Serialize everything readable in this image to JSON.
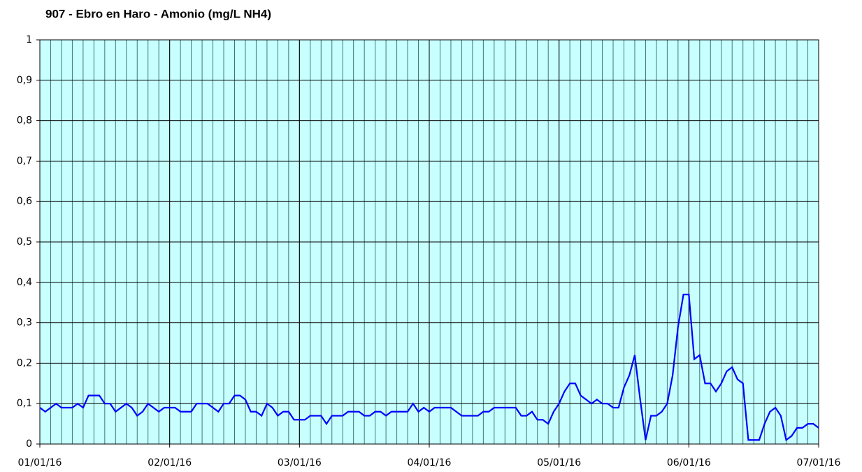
{
  "chart_data": {
    "type": "line",
    "title": "907 - Ebro en Haro - Amonio (mg/L NH4)",
    "color": "#0000ff",
    "background": "#c8ffff",
    "grid": true,
    "x": [
      0,
      1,
      2,
      3,
      4,
      5,
      6,
      7,
      8,
      9,
      10,
      11,
      12,
      13,
      14,
      15,
      16,
      17,
      18,
      19,
      20,
      21,
      22,
      23,
      24,
      25,
      26,
      27,
      28,
      29,
      30,
      31,
      32,
      33,
      34,
      35,
      36,
      37,
      38,
      39,
      40,
      41,
      42,
      43,
      44,
      45,
      46,
      47,
      48,
      49,
      50,
      51,
      52,
      53,
      54,
      55,
      56,
      57,
      58,
      59,
      60,
      61,
      62,
      63,
      64,
      65,
      66,
      67,
      68,
      69,
      70,
      71,
      72,
      73,
      74,
      75,
      76,
      77,
      78,
      79,
      80,
      81,
      82,
      83,
      84,
      85,
      86,
      87,
      88,
      89,
      90,
      91,
      92,
      93,
      94,
      95,
      96,
      97,
      98,
      99,
      100,
      101,
      102,
      103,
      104,
      105,
      106,
      107,
      108,
      109,
      110,
      111,
      112,
      113,
      114,
      115,
      116,
      117,
      118,
      119,
      120,
      121,
      122,
      123,
      124,
      125,
      126,
      127,
      128,
      129,
      130,
      131,
      132,
      133,
      134,
      135,
      136,
      137,
      138,
      139,
      140,
      141,
      142,
      143,
      144
    ],
    "values": [
      0.09,
      0.08,
      0.09,
      0.1,
      0.09,
      0.09,
      0.09,
      0.1,
      0.09,
      0.12,
      0.12,
      0.12,
      0.1,
      0.1,
      0.08,
      0.09,
      0.1,
      0.09,
      0.07,
      0.08,
      0.1,
      0.09,
      0.08,
      0.09,
      0.09,
      0.09,
      0.08,
      0.08,
      0.08,
      0.1,
      0.1,
      0.1,
      0.09,
      0.08,
      0.1,
      0.1,
      0.12,
      0.12,
      0.11,
      0.08,
      0.08,
      0.07,
      0.1,
      0.09,
      0.07,
      0.08,
      0.08,
      0.06,
      0.06,
      0.06,
      0.07,
      0.07,
      0.07,
      0.05,
      0.07,
      0.07,
      0.07,
      0.08,
      0.08,
      0.08,
      0.07,
      0.07,
      0.08,
      0.08,
      0.07,
      0.08,
      0.08,
      0.08,
      0.08,
      0.1,
      0.08,
      0.09,
      0.08,
      0.09,
      0.09,
      0.09,
      0.09,
      0.08,
      0.07,
      0.07,
      0.07,
      0.07,
      0.08,
      0.08,
      0.09,
      0.09,
      0.09,
      0.09,
      0.09,
      0.07,
      0.07,
      0.08,
      0.06,
      0.06,
      0.05,
      0.08,
      0.1,
      0.13,
      0.15,
      0.15,
      0.12,
      0.11,
      0.1,
      0.11,
      0.1,
      0.1,
      0.09,
      0.09,
      0.14,
      0.17,
      0.22,
      0.11,
      0.01,
      0.07,
      0.07,
      0.08,
      0.1,
      0.17,
      0.29,
      0.37,
      0.37,
      0.21,
      0.22,
      0.15,
      0.15,
      0.13,
      0.15,
      0.18,
      0.19,
      0.16,
      0.15,
      0.01,
      0.01,
      0.01,
      0.05,
      0.08,
      0.09,
      0.07,
      0.01,
      0.02,
      0.04,
      0.04,
      0.05,
      0.05,
      0.04
    ],
    "xlim": [
      0,
      144
    ],
    "xticks": [
      {
        "value": 0,
        "label": "01/01/16"
      },
      {
        "value": 24,
        "label": "02/01/16"
      },
      {
        "value": 48,
        "label": "03/01/16"
      },
      {
        "value": 72,
        "label": "04/01/16"
      },
      {
        "value": 96,
        "label": "05/01/16"
      },
      {
        "value": 120,
        "label": "06/01/16"
      },
      {
        "value": 144,
        "label": "07/01/16"
      }
    ],
    "xminorticks": [
      0,
      2,
      4,
      6,
      8,
      10,
      12,
      14,
      16,
      18,
      20,
      22,
      24,
      26,
      28,
      30,
      32,
      34,
      36,
      38,
      40,
      42,
      44,
      46,
      48,
      50,
      52,
      54,
      56,
      58,
      60,
      62,
      64,
      66,
      68,
      70,
      72,
      74,
      76,
      78,
      80,
      82,
      84,
      86,
      88,
      90,
      92,
      94,
      96,
      98,
      100,
      102,
      104,
      106,
      108,
      110,
      112,
      114,
      116,
      118,
      120,
      122,
      124,
      126,
      128,
      130,
      132,
      134,
      136,
      138,
      140,
      142,
      144
    ],
    "ylim": [
      0,
      1
    ],
    "yticks": [
      0,
      {
        "value": 0.1,
        "label": "0,1"
      },
      {
        "value": 0.2,
        "label": "0,2"
      },
      {
        "value": 0.3,
        "label": "0,3"
      },
      {
        "value": 0.4,
        "label": "0,4"
      },
      {
        "value": 0.5,
        "label": "0,5"
      },
      {
        "value": 0.6,
        "label": "0,6"
      },
      {
        "value": 0.7,
        "label": "0,7"
      },
      {
        "value": 0.8,
        "label": "0,8"
      },
      {
        "value": 0.9,
        "label": "0,9"
      },
      1
    ]
  }
}
